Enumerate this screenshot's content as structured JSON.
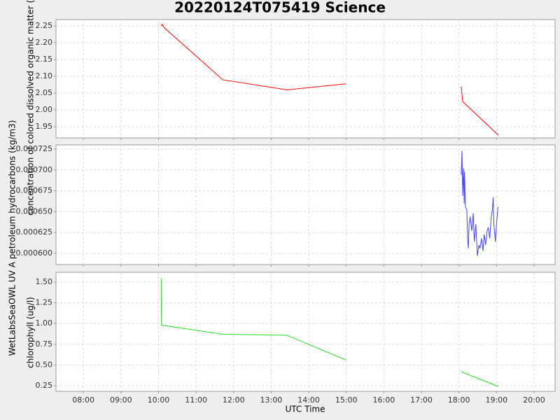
{
  "chart_data": [
    {
      "type": "line",
      "title": "20220124T075419 Science",
      "ylabel": "concentration of colored dissolved organic matter (ppb)",
      "color": "#ff0000",
      "x": [
        10.07,
        10.1,
        10.15,
        11.71,
        13.42,
        14.99,
        null,
        18.06,
        18.1,
        19.05
      ],
      "values": [
        2.25,
        2.255,
        2.245,
        2.09,
        2.06,
        2.078,
        null,
        2.07,
        2.025,
        1.925
      ],
      "ylim": [
        1.917,
        2.269
      ],
      "yticks": [
        1.95,
        {
          "value": 2.0,
          "label": "2.00"
        },
        2.05,
        {
          "value": 2.1,
          "label": "2.10"
        },
        2.15,
        {
          "value": 2.2,
          "label": "2.20"
        },
        2.25
      ],
      "grid": true
    },
    {
      "type": "line",
      "ylabel": "WetLabsSeaOWL UV A petroleum hydrocarbons (kg/m3)",
      "color": "#4444ee",
      "x": [
        18.06,
        18.08,
        18.1,
        18.12,
        18.14,
        18.15,
        18.17,
        18.21,
        18.23,
        18.25,
        18.27,
        18.3,
        18.34,
        18.38,
        18.41,
        18.45,
        18.49,
        18.53,
        18.56,
        18.6,
        18.64,
        18.67,
        18.71,
        18.75,
        18.78,
        18.82,
        18.86,
        18.89,
        18.91,
        18.93,
        18.97,
        19.0,
        19.04
      ],
      "values": [
        0.000694,
        0.000723,
        0.000669,
        0.000702,
        0.00066,
        0.000698,
        0.000656,
        0.000652,
        0.000618,
        0.000606,
        0.000635,
        0.000644,
        0.000627,
        0.000648,
        0.000614,
        0.000635,
        0.000597,
        0.00061,
        0.000606,
        0.000618,
        0.000603,
        0.000623,
        0.00061,
        0.000627,
        0.000631,
        0.000618,
        0.000644,
        0.000652,
        0.000667,
        0.000635,
        0.000614,
        0.000635,
        0.000656
      ],
      "ylim": [
        0.0005866,
        0.00073
      ],
      "yticks": [
        {
          "value": 0.0006,
          "label": "0.000600"
        },
        0.000625,
        {
          "value": 0.00065,
          "label": "0.000650"
        },
        0.000675,
        {
          "value": 0.0007,
          "label": "0.000700"
        },
        0.000725
      ],
      "grid": true
    },
    {
      "type": "line",
      "ylabel": "chlorophyll (ug/l)",
      "xlabel": "UTC Time",
      "color": "#22dd22",
      "x": [
        10.07,
        10.08,
        11.71,
        13.42,
        14.99,
        null,
        18.06,
        18.1,
        19.05
      ],
      "values": [
        1.55,
        0.98,
        0.87,
        0.858,
        0.56,
        null,
        0.42,
        0.41,
        0.24
      ],
      "ylim": [
        0.182,
        1.618
      ],
      "yticks": [
        0.25,
        {
          "value": 0.5,
          "label": "0.50"
        },
        0.75,
        {
          "value": 1.0,
          "label": "1.00"
        },
        1.25,
        {
          "value": 1.5,
          "label": "1.50"
        }
      ],
      "xlim": [
        7.27,
        20.56
      ],
      "xticks": [
        {
          "value": 8,
          "label": "08:00"
        },
        {
          "value": 9,
          "label": "09:00"
        },
        {
          "value": 10,
          "label": "10:00"
        },
        {
          "value": 11,
          "label": "11:00"
        },
        {
          "value": 12,
          "label": "12:00"
        },
        {
          "value": 13,
          "label": "13:00"
        },
        {
          "value": 14,
          "label": "14:00"
        },
        {
          "value": 15,
          "label": "15:00"
        },
        {
          "value": 16,
          "label": "16:00"
        },
        {
          "value": 17,
          "label": "17:00"
        },
        {
          "value": 18,
          "label": "18:00"
        },
        {
          "value": 19,
          "label": "19:00"
        },
        {
          "value": 20,
          "label": "20:00"
        }
      ],
      "grid": true
    }
  ]
}
